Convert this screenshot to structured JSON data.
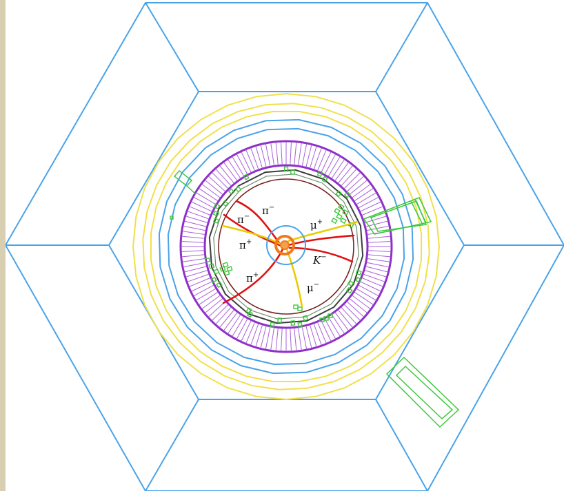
{
  "figure": {
    "background_color": "#ffffff",
    "frame_color": "#d8cfb3",
    "colors": {
      "muon_chambers": "#4aa3e8",
      "solenoid": "#f0e04a",
      "calorimeter": "#8e30c8",
      "inner_detector_outline": "#555555",
      "beam_pipe": "#4aa3e8",
      "vertex": "#f07a1a",
      "pion_tracks": "#e01010",
      "muon_kaon_tracks": "#e8cc00",
      "hits": "#3cc83c"
    }
  },
  "particle_labels": {
    "pi_minus_upper": {
      "base": "π",
      "charge": "−"
    },
    "pi_minus_left": {
      "base": "π",
      "charge": "−"
    },
    "pi_plus_mid": {
      "base": "π",
      "charge": "+"
    },
    "pi_plus_low": {
      "base": "π",
      "charge": "+"
    },
    "mu_plus": {
      "base": "μ",
      "charge": "+"
    },
    "k_minus": {
      "base": "K",
      "charge": "−"
    },
    "mu_minus": {
      "base": "μ",
      "charge": "−"
    }
  }
}
